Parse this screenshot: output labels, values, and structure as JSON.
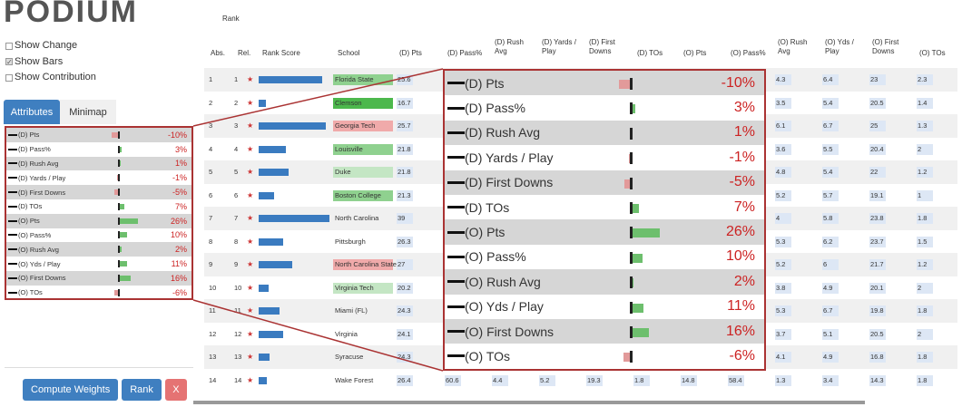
{
  "logo": "PODIUM",
  "options": [
    {
      "label": "Show Change",
      "checked": false
    },
    {
      "label": "Show Bars",
      "checked": true
    },
    {
      "label": "Show Contribution",
      "checked": false
    }
  ],
  "tabs": {
    "attributes": "Attributes",
    "minimap": "Minimap"
  },
  "buttons": {
    "compute": "Compute Weights",
    "rank": "Rank",
    "close": "X"
  },
  "rank_title": "Rank",
  "headers": {
    "abs": "Abs.",
    "rel": "Rel.",
    "rank_score": "Rank Score",
    "school": "School",
    "d_pts": "(D) Pts",
    "d_pass": "(D) Pass%",
    "d_rush": "(D) Rush Avg",
    "d_yds": "(D) Yards / Play",
    "d_fd": "(D) First Downs",
    "d_tos": "(D) TOs",
    "o_pts": "(O) Pts",
    "o_pass": "(O) Pass%",
    "o_rush": "(O) Rush Avg",
    "o_yds": "(O) Yds / Play",
    "o_fd": "(O) First Downs",
    "o_tos": "(O) TOs"
  },
  "attributes": [
    {
      "name": "(D) Pts",
      "value": "-10%",
      "pct": -10
    },
    {
      "name": "(D) Pass%",
      "value": "3%",
      "pct": 3
    },
    {
      "name": "(D) Rush Avg",
      "value": "1%",
      "pct": 1
    },
    {
      "name": "(D) Yards / Play",
      "value": "-1%",
      "pct": -1
    },
    {
      "name": "(D) First Downs",
      "value": "-5%",
      "pct": -5
    },
    {
      "name": "(D) TOs",
      "value": "7%",
      "pct": 7
    },
    {
      "name": "(O) Pts",
      "value": "26%",
      "pct": 26
    },
    {
      "name": "(O) Pass%",
      "value": "10%",
      "pct": 10
    },
    {
      "name": "(O) Rush Avg",
      "value": "2%",
      "pct": 2
    },
    {
      "name": "(O) Yds / Play",
      "value": "11%",
      "pct": 11
    },
    {
      "name": "(O) First Downs",
      "value": "16%",
      "pct": 16
    },
    {
      "name": "(O) TOs",
      "value": "-6%",
      "pct": -6
    }
  ],
  "rows": [
    {
      "abs": "1",
      "rel": "1",
      "score": 0.9,
      "school": "Florida State",
      "school_color": "#8fd18f",
      "d_pts": "25.6",
      "o_rush": "4.3",
      "o_yds": "6.4",
      "o_fd": "23",
      "o_tos": "2.3"
    },
    {
      "abs": "2",
      "rel": "2",
      "score": 0.1,
      "school": "Clemson",
      "school_color": "#4cb84c",
      "d_pts": "16.7",
      "o_rush": "3.5",
      "o_yds": "5.4",
      "o_fd": "20.5",
      "o_tos": "1.4"
    },
    {
      "abs": "3",
      "rel": "3",
      "score": 0.95,
      "school": "Georgia Tech",
      "school_color": "#f0aaaa",
      "d_pts": "25.7",
      "o_rush": "6.1",
      "o_yds": "6.7",
      "o_fd": "25",
      "o_tos": "1.3"
    },
    {
      "abs": "4",
      "rel": "4",
      "score": 0.38,
      "school": "Louisville",
      "school_color": "#8fd18f",
      "d_pts": "21.8",
      "o_rush": "3.6",
      "o_yds": "5.5",
      "o_fd": "20.4",
      "o_tos": "2"
    },
    {
      "abs": "5",
      "rel": "5",
      "score": 0.42,
      "school": "Duke",
      "school_color": "#c4e6c4",
      "d_pts": "21.8",
      "o_rush": "4.8",
      "o_yds": "5.4",
      "o_fd": "22",
      "o_tos": "1.2"
    },
    {
      "abs": "6",
      "rel": "6",
      "score": 0.22,
      "school": "Boston College",
      "school_color": "#8fd18f",
      "d_pts": "21.3",
      "o_rush": "5.2",
      "o_yds": "5.7",
      "o_fd": "19.1",
      "o_tos": "1"
    },
    {
      "abs": "7",
      "rel": "7",
      "score": 1.0,
      "school": "North Carolina",
      "school_color": "",
      "d_pts": "39",
      "o_rush": "4",
      "o_yds": "5.8",
      "o_fd": "23.8",
      "o_tos": "1.8"
    },
    {
      "abs": "8",
      "rel": "8",
      "score": 0.35,
      "school": "Pittsburgh",
      "school_color": "",
      "d_pts": "26.3",
      "o_rush": "5.3",
      "o_yds": "6.2",
      "o_fd": "23.7",
      "o_tos": "1.5"
    },
    {
      "abs": "9",
      "rel": "9",
      "score": 0.48,
      "school": "North Carolina State",
      "school_color": "#f0aaaa",
      "d_pts": "27",
      "o_rush": "5.2",
      "o_yds": "6",
      "o_fd": "21.7",
      "o_tos": "1.2"
    },
    {
      "abs": "10",
      "rel": "10",
      "score": 0.14,
      "school": "Virginia Tech",
      "school_color": "#c4e6c4",
      "d_pts": "20.2",
      "o_rush": "3.8",
      "o_yds": "4.9",
      "o_fd": "20.1",
      "o_tos": "2"
    },
    {
      "abs": "11",
      "rel": "11",
      "score": 0.3,
      "school": "Miami (FL)",
      "school_color": "",
      "d_pts": "24.3",
      "o_rush": "5.3",
      "o_yds": "6.7",
      "o_fd": "19.8",
      "o_tos": "1.8"
    },
    {
      "abs": "12",
      "rel": "12",
      "score": 0.34,
      "school": "Virginia",
      "school_color": "",
      "d_pts": "24.1",
      "o_rush": "3.7",
      "o_yds": "5.1",
      "o_fd": "20.5",
      "o_tos": "2"
    },
    {
      "abs": "13",
      "rel": "13",
      "score": 0.16,
      "school": "Syracuse",
      "school_color": "",
      "d_pts": "24.3",
      "o_rush": "4.1",
      "o_yds": "4.9",
      "o_fd": "16.8",
      "o_tos": "1.8"
    },
    {
      "abs": "14",
      "rel": "14",
      "score": 0.12,
      "school": "Wake Forest",
      "school_color": "",
      "d_pts": "26.4",
      "d_pass": "60.6",
      "d_rush": "4.4",
      "d_yds": "5.2",
      "d_fd": "19.3",
      "d_tos": "1.8",
      "o_pts": "14.8",
      "o_pass": "58.4",
      "o_rush": "1.3",
      "o_yds": "3.4",
      "o_fd": "14.3",
      "o_tos": "1.8"
    }
  ]
}
